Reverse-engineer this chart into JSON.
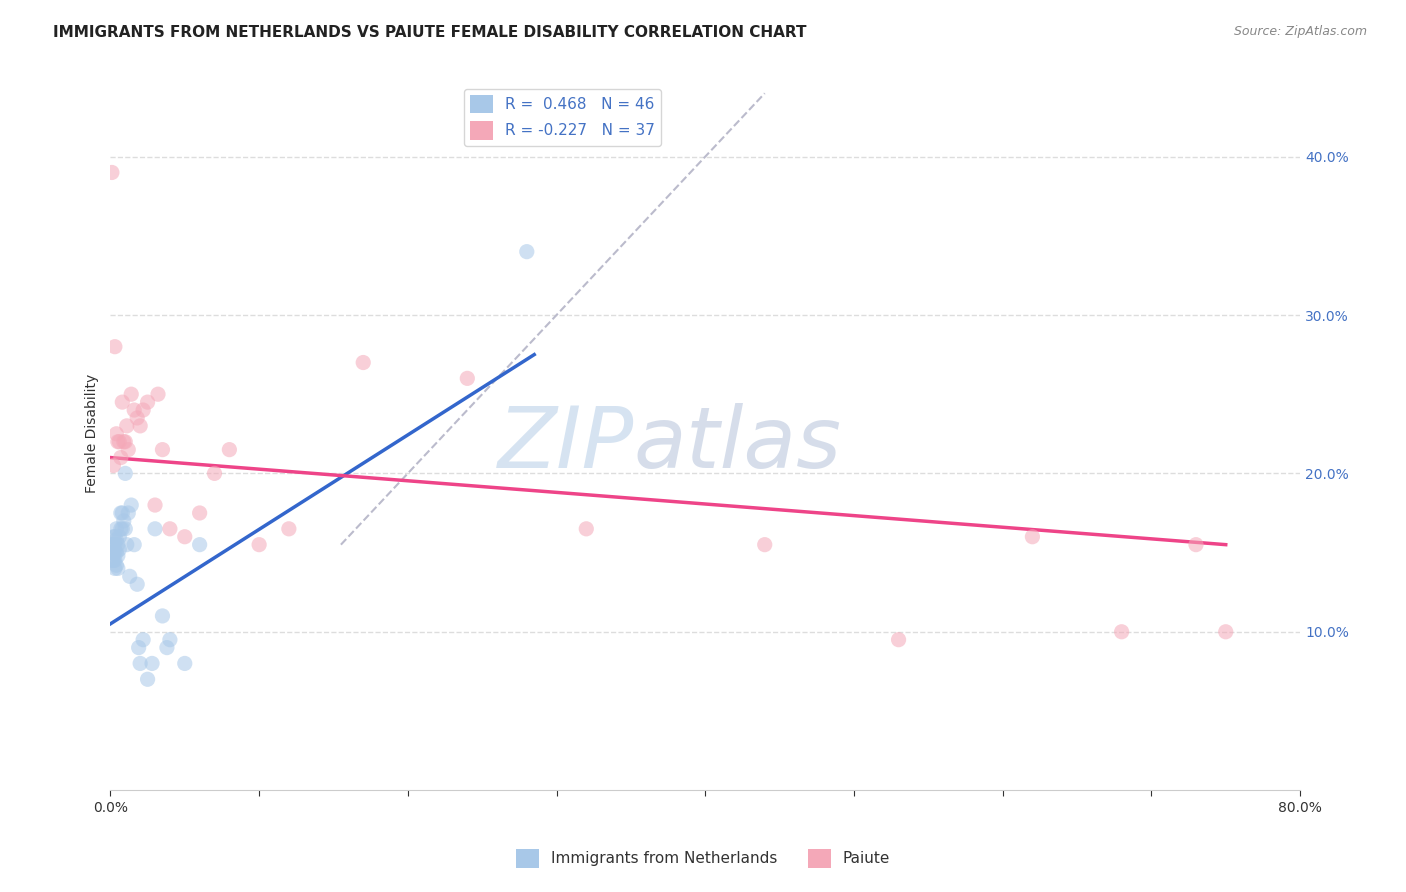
{
  "title": "IMMIGRANTS FROM NETHERLANDS VS PAIUTE FEMALE DISABILITY CORRELATION CHART",
  "source": "Source: ZipAtlas.com",
  "ylabel": "Female Disability",
  "xlim": [
    0.0,
    0.8
  ],
  "ylim": [
    0.0,
    0.45
  ],
  "x_ticks": [
    0.0,
    0.1,
    0.2,
    0.3,
    0.4,
    0.5,
    0.6,
    0.7,
    0.8
  ],
  "y_ticks": [
    0.1,
    0.2,
    0.3,
    0.4
  ],
  "legend_R1": "0.468",
  "legend_N1": "46",
  "legend_R2": "-0.227",
  "legend_N2": "37",
  "color_blue": "#a8c8e8",
  "color_pink": "#f4a8b8",
  "color_blue_line": "#3366cc",
  "color_pink_line": "#ee4488",
  "watermark_zip": "ZIP",
  "watermark_atlas": "atlas",
  "background_color": "#ffffff",
  "grid_color": "#dddddd",
  "title_fontsize": 11,
  "label_fontsize": 10,
  "tick_fontsize": 10,
  "scatter_size": 120,
  "scatter_alpha": 0.55,
  "blue_scatter_x": [
    0.001,
    0.001,
    0.001,
    0.002,
    0.002,
    0.002,
    0.002,
    0.003,
    0.003,
    0.003,
    0.003,
    0.003,
    0.004,
    0.004,
    0.004,
    0.004,
    0.005,
    0.005,
    0.005,
    0.006,
    0.006,
    0.007,
    0.007,
    0.008,
    0.008,
    0.009,
    0.01,
    0.01,
    0.011,
    0.012,
    0.013,
    0.014,
    0.016,
    0.018,
    0.019,
    0.02,
    0.022,
    0.025,
    0.028,
    0.03,
    0.035,
    0.038,
    0.04,
    0.05,
    0.06,
    0.28
  ],
  "blue_scatter_y": [
    0.155,
    0.15,
    0.145,
    0.16,
    0.155,
    0.15,
    0.145,
    0.16,
    0.155,
    0.15,
    0.145,
    0.14,
    0.165,
    0.158,
    0.15,
    0.142,
    0.155,
    0.148,
    0.14,
    0.16,
    0.152,
    0.175,
    0.165,
    0.175,
    0.165,
    0.17,
    0.2,
    0.165,
    0.155,
    0.175,
    0.135,
    0.18,
    0.155,
    0.13,
    0.09,
    0.08,
    0.095,
    0.07,
    0.08,
    0.165,
    0.11,
    0.09,
    0.095,
    0.08,
    0.155,
    0.34
  ],
  "pink_scatter_x": [
    0.001,
    0.002,
    0.003,
    0.004,
    0.005,
    0.006,
    0.007,
    0.008,
    0.009,
    0.01,
    0.011,
    0.012,
    0.014,
    0.016,
    0.018,
    0.02,
    0.022,
    0.025,
    0.03,
    0.032,
    0.035,
    0.04,
    0.05,
    0.06,
    0.07,
    0.08,
    0.1,
    0.12,
    0.17,
    0.24,
    0.32,
    0.44,
    0.53,
    0.62,
    0.68,
    0.73,
    0.75
  ],
  "pink_scatter_y": [
    0.39,
    0.205,
    0.28,
    0.225,
    0.22,
    0.22,
    0.21,
    0.245,
    0.22,
    0.22,
    0.23,
    0.215,
    0.25,
    0.24,
    0.235,
    0.23,
    0.24,
    0.245,
    0.18,
    0.25,
    0.215,
    0.165,
    0.16,
    0.175,
    0.2,
    0.215,
    0.155,
    0.165,
    0.27,
    0.26,
    0.165,
    0.155,
    0.095,
    0.16,
    0.1,
    0.155,
    0.1
  ],
  "blue_line_x": [
    0.0,
    0.285
  ],
  "blue_line_y": [
    0.105,
    0.275
  ],
  "pink_line_x": [
    0.0,
    0.75
  ],
  "pink_line_y": [
    0.21,
    0.155
  ],
  "diag_line_x": [
    0.155,
    0.44
  ],
  "diag_line_y": [
    0.155,
    0.44
  ]
}
